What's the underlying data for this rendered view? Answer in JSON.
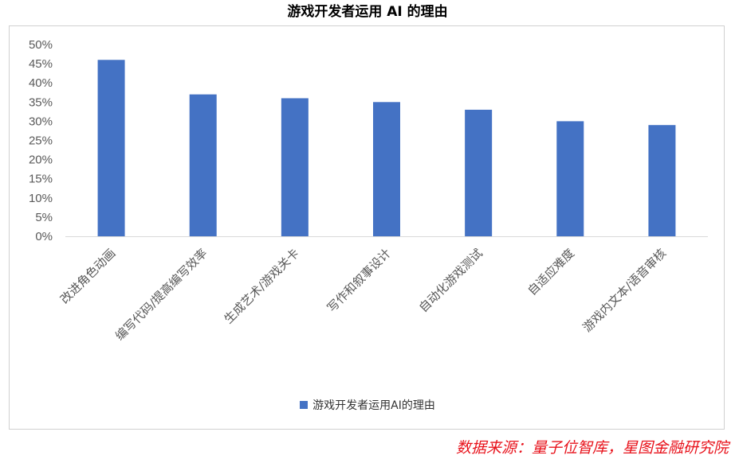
{
  "title": "游戏开发者运用 AI 的理由",
  "source_note": "数据来源：量子位智库，星图金融研究院",
  "legend": {
    "label": "游戏开发者运用AI的理由",
    "color": "#4472c4"
  },
  "chart_data": {
    "type": "bar",
    "categories": [
      "改进角色动画",
      "编写代码/提高编写效率",
      "生成艺术/游戏关卡",
      "写作和叙事设计",
      "自动化游戏测试",
      "自适应难度",
      "游戏内文本/语音审核"
    ],
    "series": [
      {
        "name": "游戏开发者运用AI的理由",
        "values": [
          46,
          37,
          36,
          35,
          33,
          30,
          29
        ],
        "color": "#4472c4"
      }
    ],
    "ylim": [
      0,
      50
    ],
    "yticks": [
      0,
      5,
      10,
      15,
      20,
      25,
      30,
      35,
      40,
      45,
      50
    ],
    "ytick_suffix": "%",
    "grid": false,
    "legend_position": "bottom"
  }
}
